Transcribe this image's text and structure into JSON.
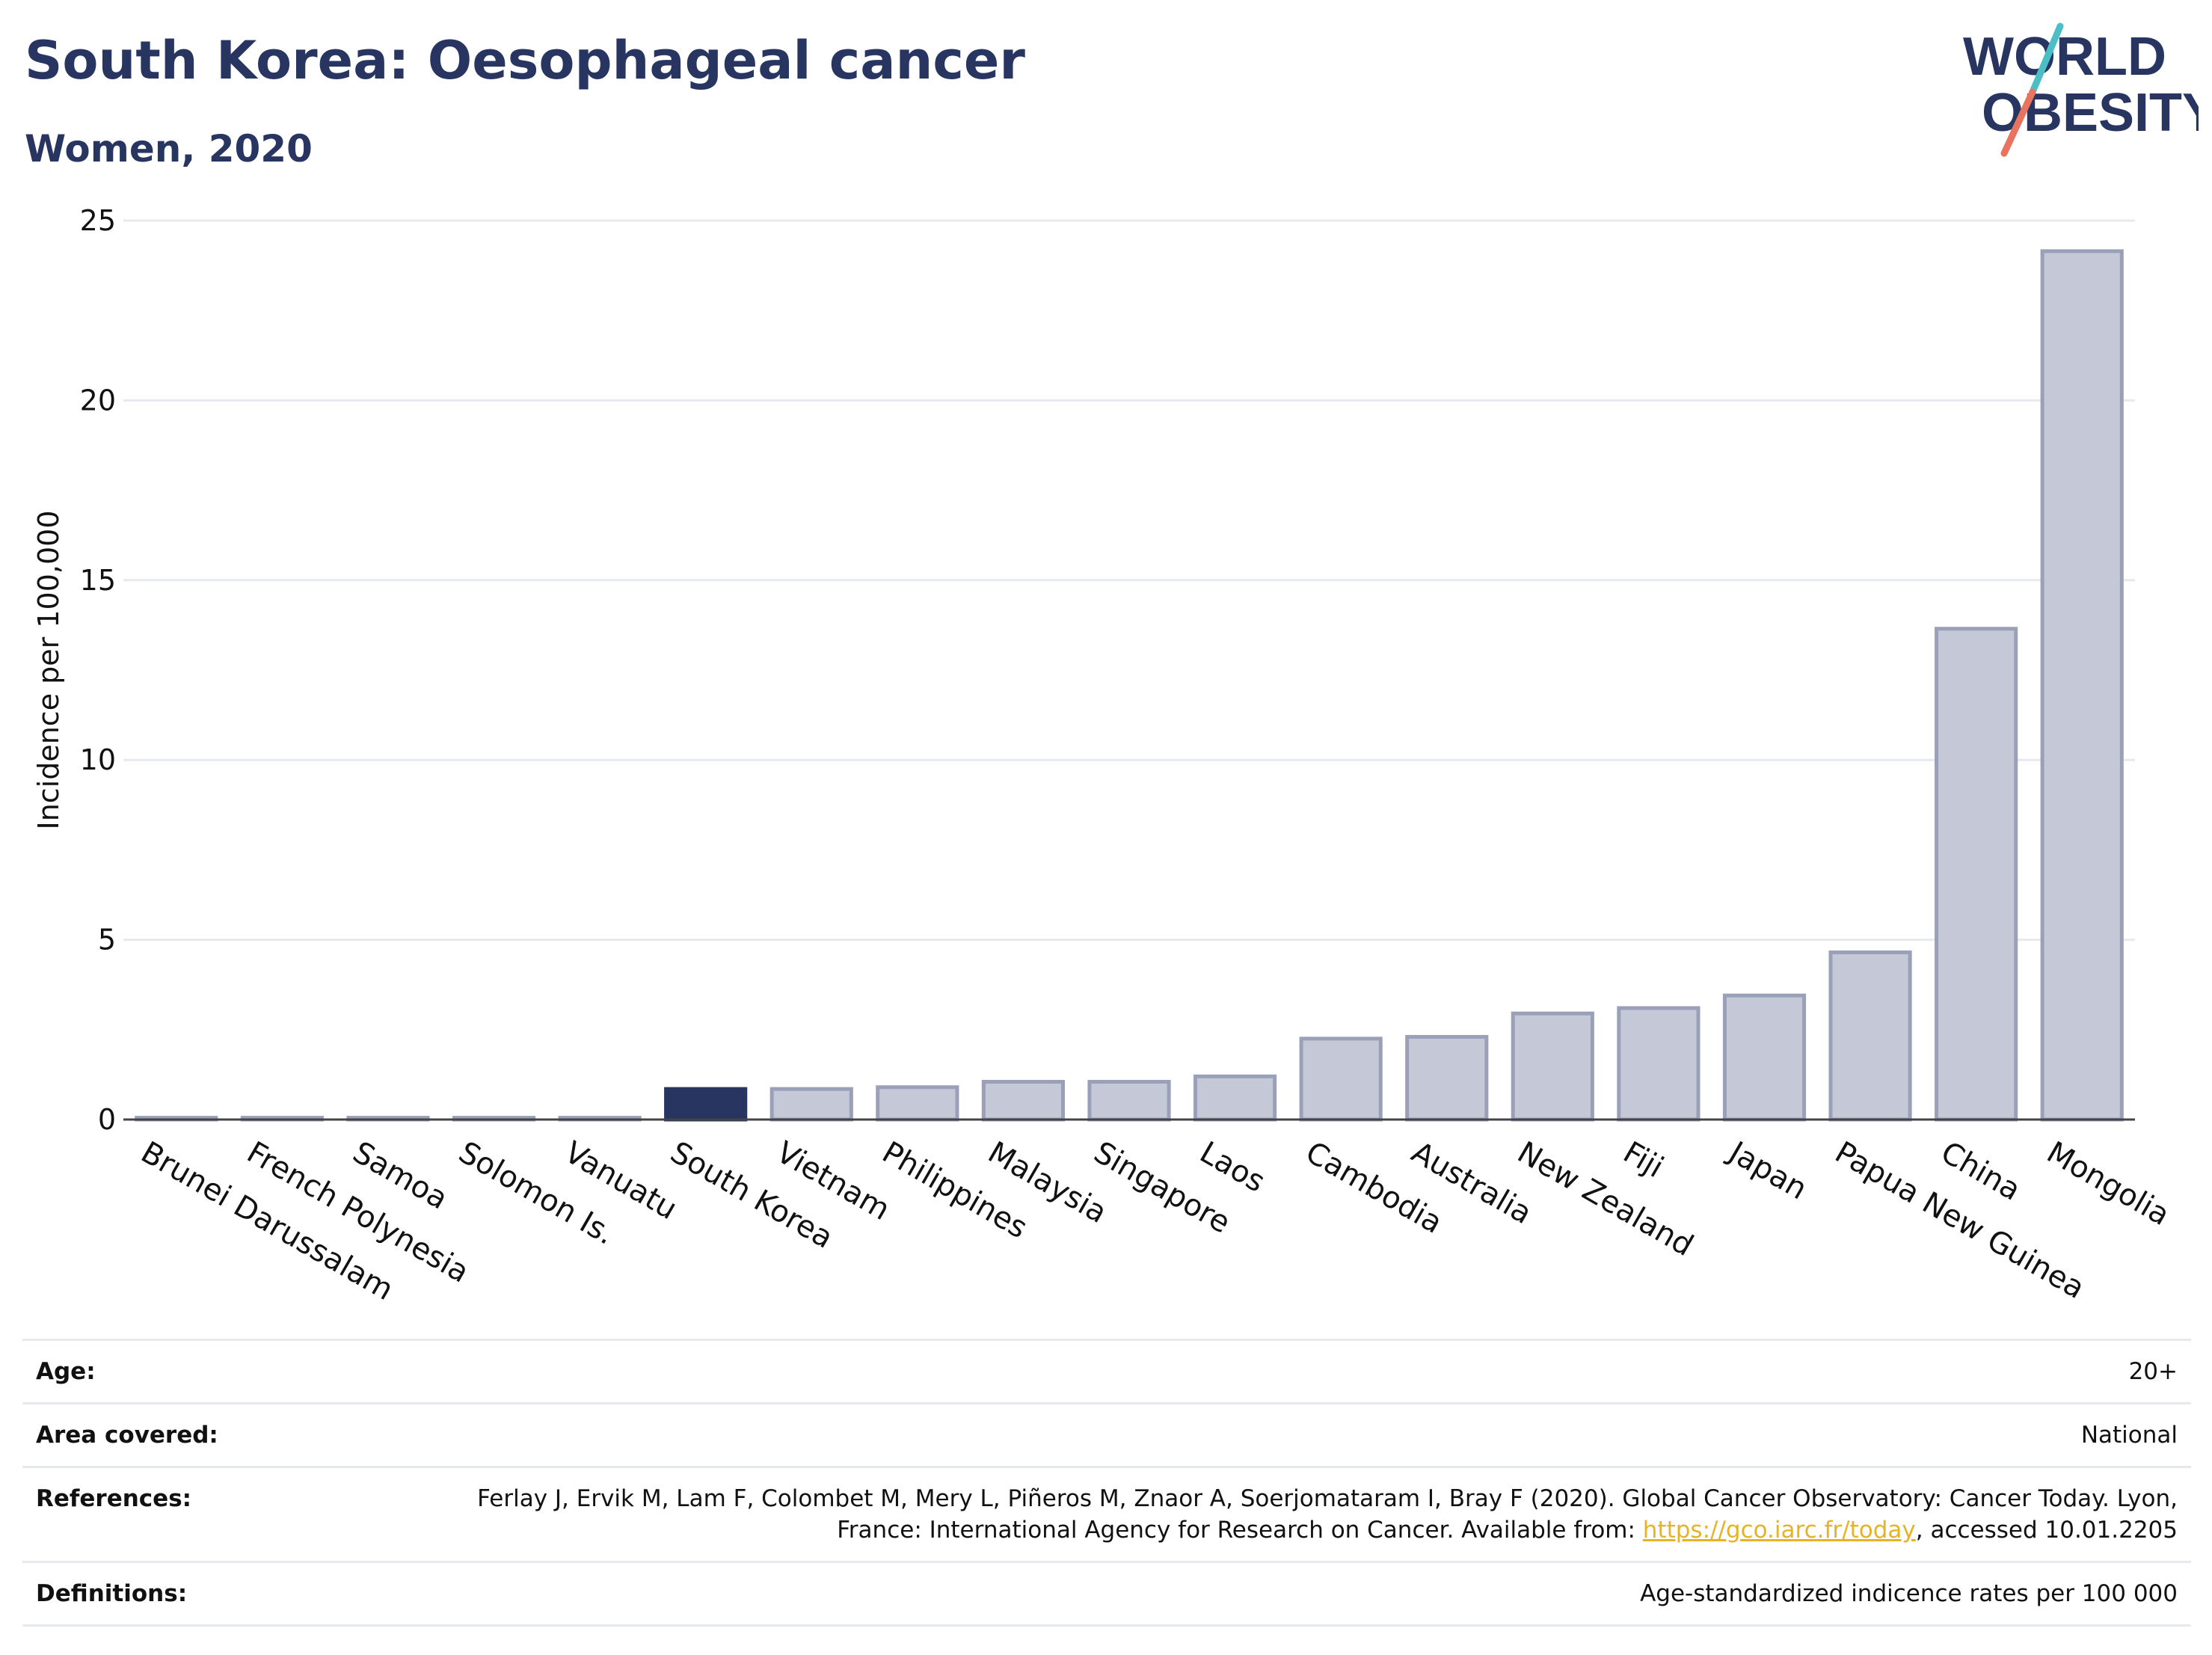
{
  "header": {
    "title": "South Korea: Oesophageal cancer",
    "subtitle": "Women, 2020"
  },
  "logo": {
    "line1": "WORLD",
    "line2": "OBESITY",
    "colors": {
      "text": "#283561",
      "teal": "#4bbfc5",
      "coral": "#e8735f"
    }
  },
  "colors": {
    "highlight": "#283561",
    "bar": "#c5c8d6",
    "bar_border": "#9aa0b8",
    "grid": "#e6eaee",
    "axis": "#444444"
  },
  "chart_data": {
    "type": "bar",
    "ylabel": "Incidence per 100,000",
    "ylim": [
      0,
      25
    ],
    "yticks": [
      0,
      5,
      10,
      15,
      20,
      25
    ],
    "grid": true,
    "highlight": "South Korea",
    "categories": [
      "Brunei Darussalam",
      "French Polynesia",
      "Samoa",
      "Solomon Is.",
      "Vanuatu",
      "South Korea",
      "Vietnam",
      "Philippines",
      "Malaysia",
      "Singapore",
      "Laos",
      "Cambodia",
      "Australia",
      "New Zealand",
      "Fiji",
      "Japan",
      "Papua New Guinea",
      "China",
      "Mongolia"
    ],
    "values": [
      0.05,
      0.05,
      0.05,
      0.05,
      0.05,
      0.85,
      0.85,
      0.9,
      1.05,
      1.05,
      1.2,
      2.25,
      2.3,
      2.95,
      3.1,
      3.45,
      4.65,
      13.65,
      24.15
    ]
  },
  "metadata": [
    {
      "label": "Age:",
      "value": "20+"
    },
    {
      "label": "Area covered:",
      "value": "National"
    },
    {
      "label": "References:",
      "value_pre": "Ferlay J, Ervik M, Lam F, Colombet M, Mery L, Piñeros M, Znaor A, Soerjomataram I, Bray F (2020). Global Cancer Observatory: Cancer Today. Lyon, France: International Agency for Research on Cancer. Available from: ",
      "link": "https://gco.iarc.fr/today",
      "value_post": ", accessed 10.01.2205"
    },
    {
      "label": "Definitions:",
      "value": "Age-standardized indicence rates per 100 000"
    }
  ]
}
